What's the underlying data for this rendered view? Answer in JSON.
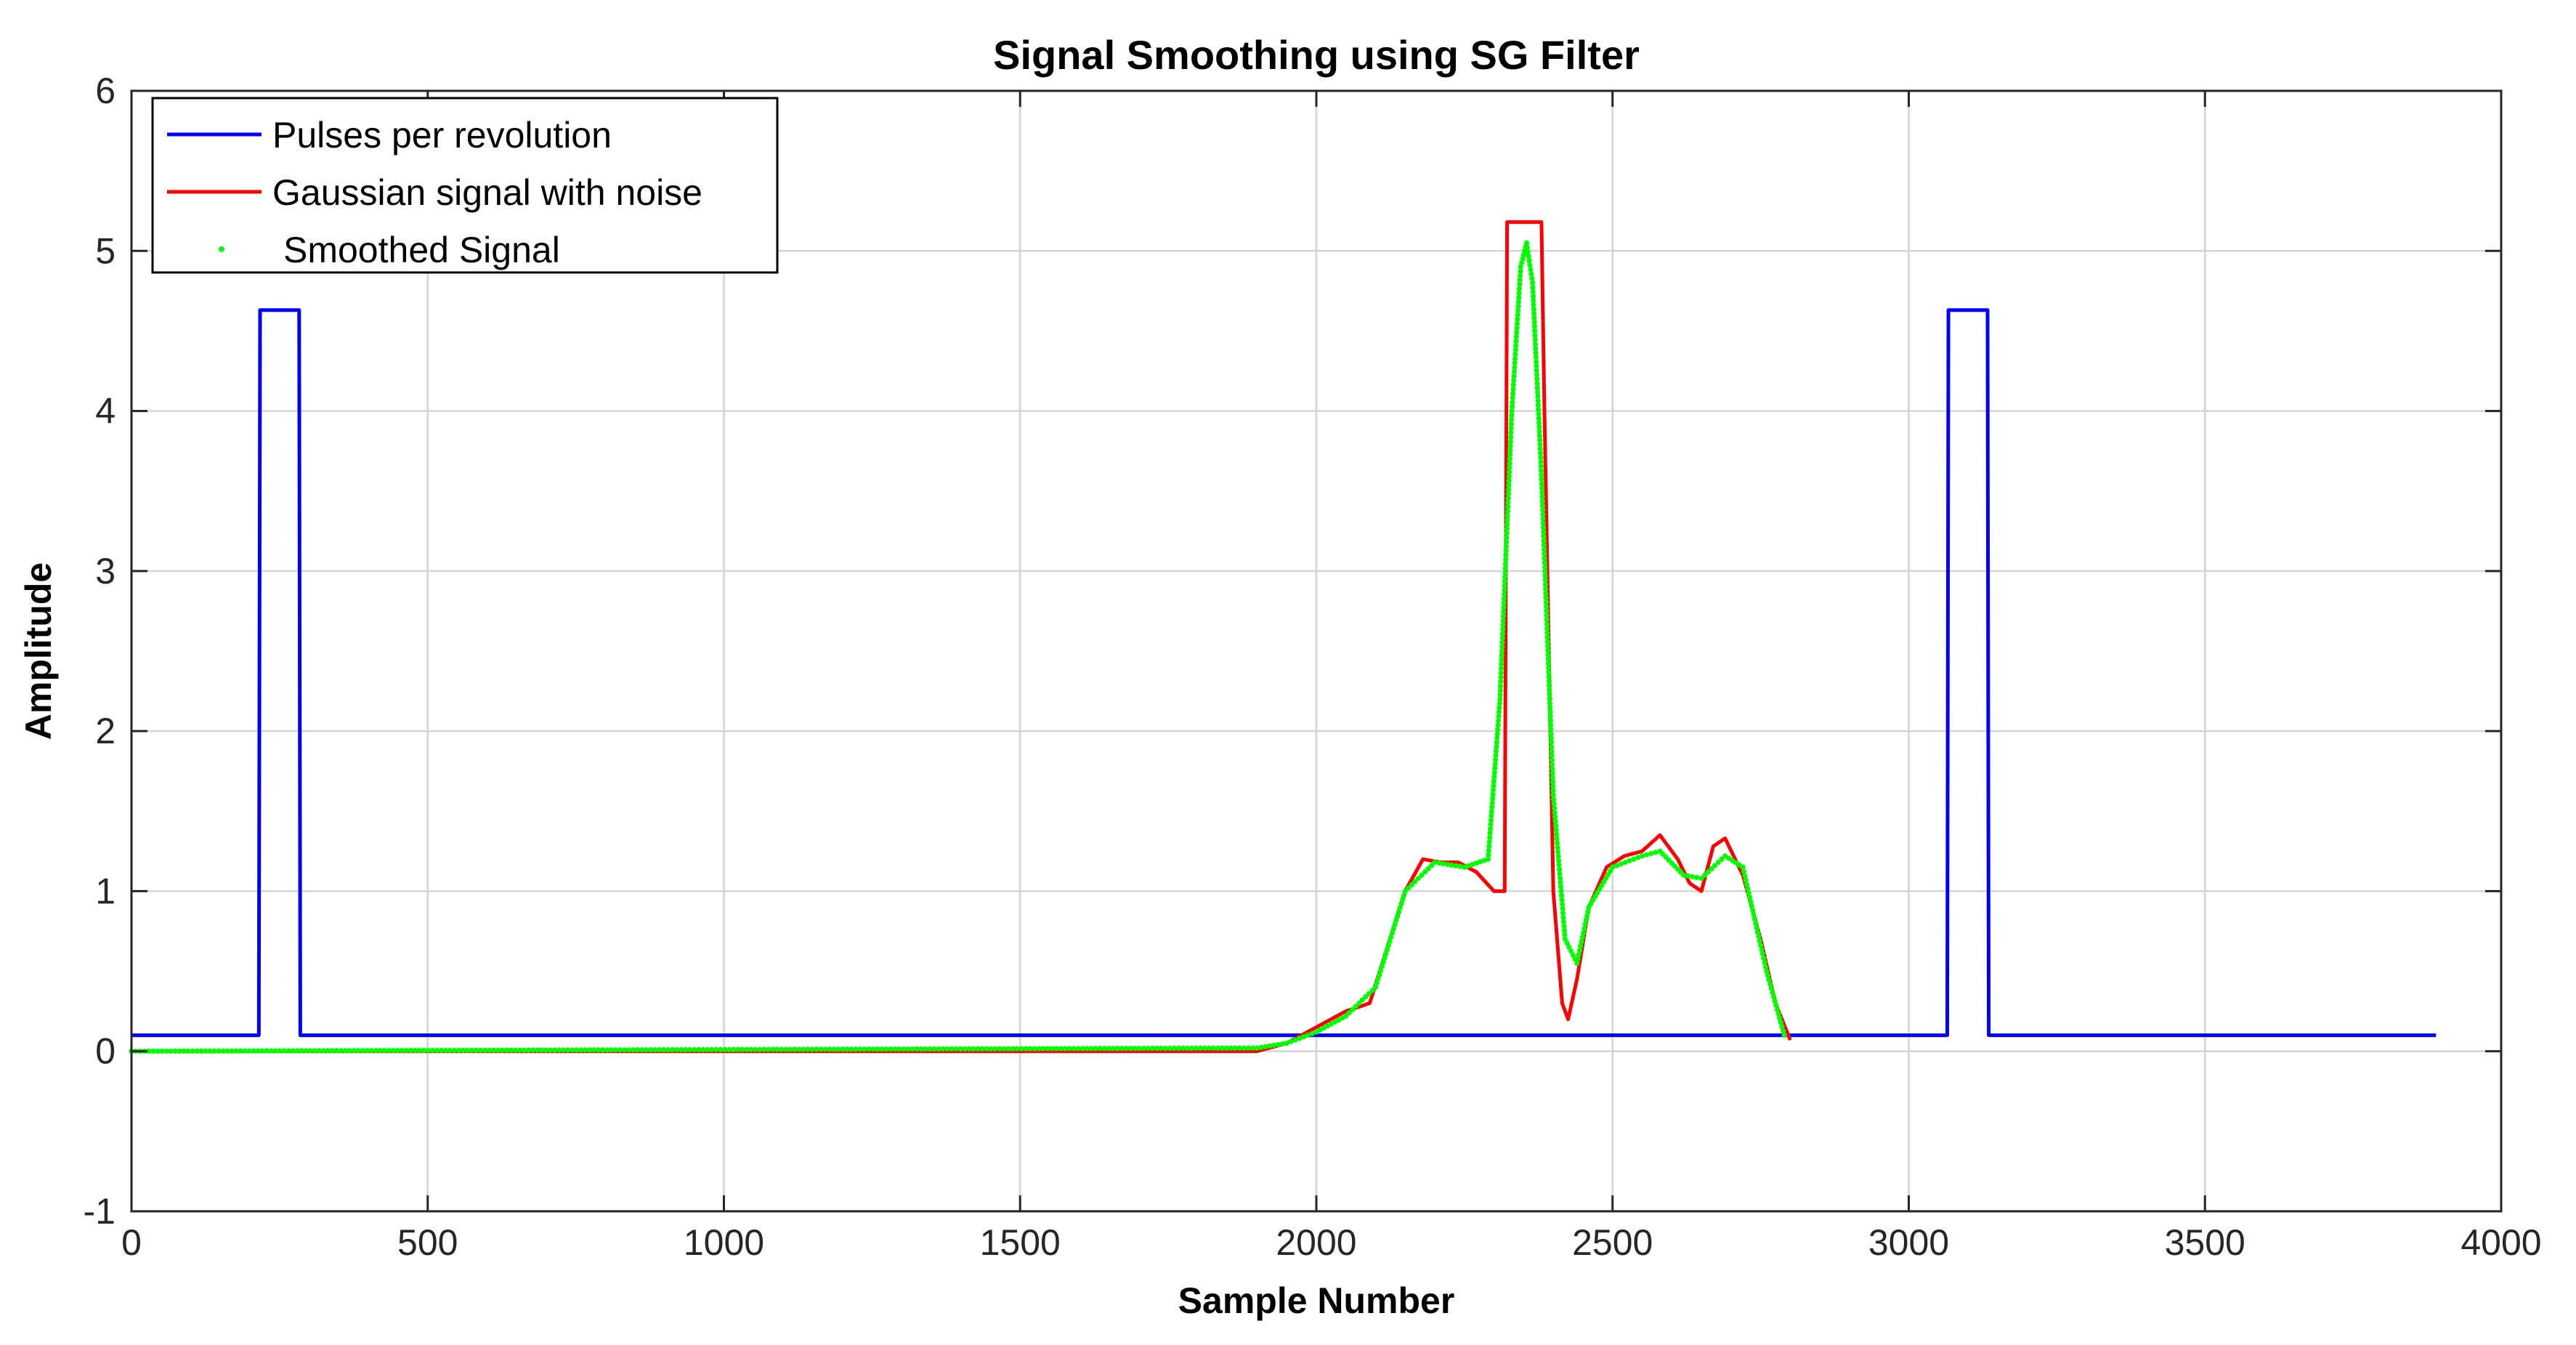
{
  "chart_data": {
    "type": "line",
    "title": "Signal Smoothing using SG Filter",
    "xlabel": "Sample Number",
    "ylabel": "Amplitude",
    "xlim": [
      0,
      4000
    ],
    "ylim": [
      -1,
      6
    ],
    "xticks": [
      0,
      500,
      1000,
      1500,
      2000,
      2500,
      3000,
      3500,
      4000
    ],
    "yticks": [
      -1,
      0,
      1,
      2,
      3,
      4,
      5,
      6
    ],
    "xtick_labels": [
      "0",
      "500",
      "1000",
      "1500",
      "2000",
      "2500",
      "3000",
      "3500",
      "4000"
    ],
    "ytick_labels": [
      "-1",
      "0",
      "1",
      "2",
      "3",
      "4",
      "5",
      "6"
    ],
    "grid": true,
    "legend_position": "top-left",
    "series": [
      {
        "name": "Pulses per revolution",
        "color": "#0000ff",
        "style": "line",
        "x": [
          0,
          215,
          217,
          283,
          285,
          3065,
          3067,
          3133,
          3135,
          3890
        ],
        "y": [
          0.1,
          0.1,
          4.63,
          4.63,
          0.1,
          0.1,
          4.63,
          4.63,
          0.1,
          0.1
        ]
      },
      {
        "name": "Gaussian signal with noise",
        "color": "#ff0000",
        "style": "line",
        "x": [
          0,
          1900,
          1950,
          2000,
          2050,
          2090,
          2120,
          2150,
          2180,
          2210,
          2240,
          2270,
          2300,
          2318,
          2322,
          2380,
          2385,
          2400,
          2415,
          2425,
          2440,
          2460,
          2490,
          2520,
          2550,
          2580,
          2610,
          2630,
          2650,
          2670,
          2690,
          2720,
          2750,
          2775,
          2800
        ],
        "y": [
          0.0,
          0.0,
          0.05,
          0.15,
          0.25,
          0.3,
          0.65,
          1.0,
          1.2,
          1.18,
          1.18,
          1.12,
          1.0,
          1.0,
          5.18,
          5.18,
          4.0,
          1.0,
          0.3,
          0.2,
          0.45,
          0.9,
          1.15,
          1.22,
          1.25,
          1.35,
          1.2,
          1.05,
          1.0,
          1.28,
          1.33,
          1.1,
          0.7,
          0.3,
          0.07
        ]
      },
      {
        "name": "Smoothed Signal",
        "color": "#00ff00",
        "style": "dots",
        "x": [
          0,
          1900,
          1950,
          2000,
          2050,
          2100,
          2150,
          2200,
          2250,
          2290,
          2310,
          2330,
          2345,
          2355,
          2365,
          2380,
          2400,
          2420,
          2440,
          2460,
          2500,
          2550,
          2580,
          2620,
          2650,
          2690,
          2720,
          2760,
          2790
        ],
        "y": [
          0.0,
          0.02,
          0.05,
          0.12,
          0.22,
          0.4,
          1.0,
          1.18,
          1.15,
          1.2,
          2.2,
          4.0,
          4.9,
          5.05,
          4.8,
          3.6,
          1.6,
          0.7,
          0.55,
          0.9,
          1.15,
          1.22,
          1.25,
          1.1,
          1.08,
          1.22,
          1.15,
          0.5,
          0.1
        ]
      }
    ]
  }
}
